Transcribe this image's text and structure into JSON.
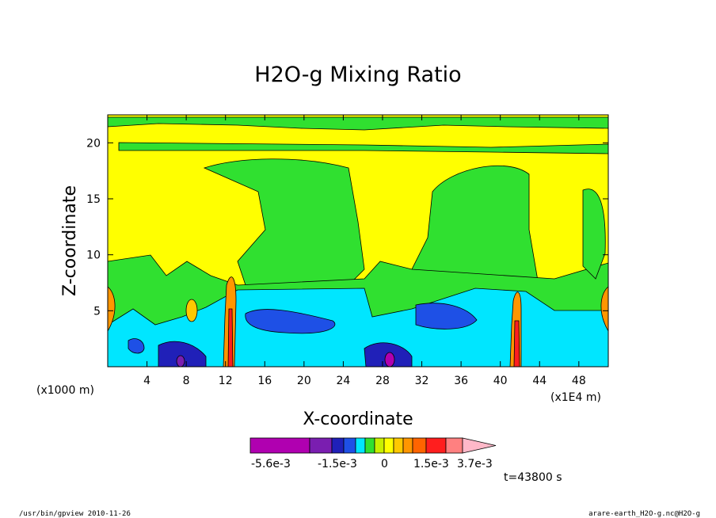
{
  "chart_data": {
    "type": "heatmap",
    "title": "H2O-g Mixing Ratio",
    "xlabel": "X-coordinate",
    "ylabel": "Z-coordinate",
    "x_unit_left": "(x1000 m)",
    "x_unit_right": "(x1E4 m)",
    "x_ticks": [
      "4",
      "8",
      "12",
      "16",
      "20",
      "24",
      "28",
      "32",
      "36",
      "40",
      "44",
      "48"
    ],
    "y_ticks": [
      "5",
      "10",
      "15",
      "20"
    ],
    "xlim": [
      0,
      51
    ],
    "ylim": [
      0,
      22.5
    ],
    "colorbar": {
      "colors": [
        "#b000b0",
        "#7a1eb0",
        "#2020b8",
        "#1e50e6",
        "#00e6ff",
        "#30e030",
        "#c8f000",
        "#ffff00",
        "#ffc800",
        "#ff9600",
        "#ff6400",
        "#ff1e1e",
        "#ff8080",
        "#ffb8c8"
      ],
      "labels": [
        "-5.6e-3",
        "-1.5e-3",
        "0",
        "1.5e-3",
        "3.7e-3"
      ]
    },
    "time_label": "t=43800 s"
  },
  "footer": {
    "left": "/usr/bin/gpview   2010-11-26",
    "right": "arare-earth_H2O-g.nc@H2O-g"
  }
}
